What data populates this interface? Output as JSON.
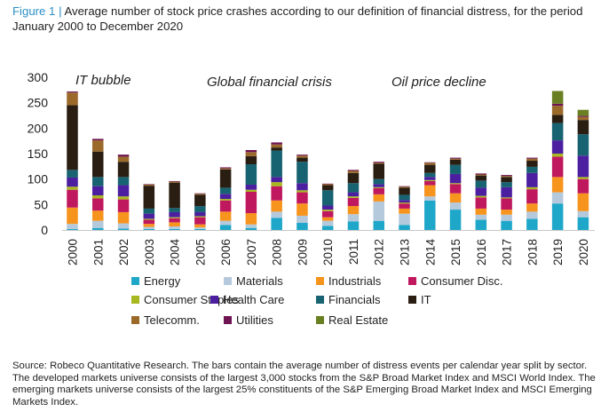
{
  "figure": {
    "label": "Figure 1",
    "separator": "|",
    "caption": "Average number of stock price crashes according to our definition of financial distress, for the period January 2000 to December 2020"
  },
  "source_note": "Source: Robeco Quantitative Research. The bars contain the average number of distress events per calendar year split by sector. The developed markets universe consists of the largest 3,000 stocks from the S&P Broad Market Index and MSCI World Index. The emerging markets universe consists of the largest 25% constituents of the S&P Emerging Broad Market Index and MSCI Emerging Markets Index.",
  "chart_data": {
    "type": "bar",
    "stacked": true,
    "title": "Average number of stock price crashes according to our definition of financial distress, for the period January 2000 to December 2020",
    "xlabel": "",
    "ylabel": "",
    "ylim": [
      0,
      300
    ],
    "yticks": [
      0,
      50,
      100,
      150,
      200,
      250,
      300
    ],
    "grid": false,
    "legend_position": "bottom",
    "categories": [
      "2000",
      "2001",
      "2002",
      "2003",
      "2004",
      "2005",
      "2006",
      "2007",
      "2008",
      "2009",
      "2010",
      "2011",
      "2012",
      "2013",
      "2014",
      "2015",
      "2016",
      "2017",
      "2018",
      "2019",
      "2020"
    ],
    "annotations": [
      {
        "text": "IT bubble",
        "at_category": "2000"
      },
      {
        "text": "Global financial crisis",
        "at_category": "2007"
      },
      {
        "text": "Oil price decline",
        "at_category": "2014"
      }
    ],
    "series": [
      {
        "name": "Energy",
        "color": "#1fa7c9",
        "values": [
          2,
          4,
          3,
          2,
          2,
          2,
          10,
          4,
          24,
          14,
          8,
          17,
          18,
          10,
          58,
          40,
          20,
          18,
          22,
          52,
          25
        ]
      },
      {
        "name": "Materials",
        "color": "#b5c9dc",
        "values": [
          10,
          14,
          10,
          4,
          5,
          3,
          8,
          7,
          12,
          14,
          10,
          14,
          38,
          22,
          8,
          14,
          10,
          12,
          14,
          22,
          12
        ]
      },
      {
        "name": "Industrials",
        "color": "#f7941d",
        "values": [
          32,
          20,
          22,
          6,
          8,
          6,
          18,
          22,
          22,
          24,
          7,
          16,
          14,
          10,
          22,
          18,
          12,
          10,
          16,
          30,
          35
        ]
      },
      {
        "name": "Consumer Disc.",
        "color": "#c0185f",
        "values": [
          35,
          24,
          25,
          8,
          8,
          14,
          22,
          42,
          28,
          22,
          12,
          16,
          12,
          10,
          8,
          18,
          22,
          22,
          28,
          40,
          28
        ]
      },
      {
        "name": "Consumer Staples",
        "color": "#a8b820",
        "values": [
          6,
          6,
          6,
          2,
          2,
          2,
          3,
          4,
          8,
          4,
          3,
          3,
          2,
          2,
          2,
          2,
          3,
          2,
          4,
          6,
          4
        ]
      },
      {
        "name": "Health Care",
        "color": "#4b1fa0",
        "values": [
          18,
          18,
          22,
          10,
          10,
          8,
          10,
          10,
          10,
          14,
          8,
          8,
          6,
          5,
          6,
          18,
          16,
          20,
          28,
          26,
          42
        ]
      },
      {
        "name": "Financials",
        "color": "#176371",
        "values": [
          15,
          18,
          16,
          10,
          8,
          12,
          12,
          40,
          52,
          42,
          30,
          18,
          10,
          10,
          8,
          18,
          14,
          10,
          12,
          34,
          42
        ]
      },
      {
        "name": "IT",
        "color": "#2a1e12",
        "values": [
          127,
          50,
          30,
          45,
          50,
          22,
          36,
          16,
          6,
          8,
          10,
          20,
          30,
          14,
          16,
          10,
          10,
          10,
          12,
          16,
          28
        ]
      },
      {
        "name": "Telecomm.",
        "color": "#9b6a2b",
        "values": [
          25,
          22,
          10,
          2,
          2,
          2,
          2,
          8,
          6,
          4,
          2,
          4,
          2,
          2,
          4,
          2,
          2,
          2,
          4,
          18,
          6
        ]
      },
      {
        "name": "Utilities",
        "color": "#6e1452",
        "values": [
          2,
          3,
          4,
          1,
          1,
          1,
          2,
          4,
          4,
          2,
          1,
          2,
          2,
          1,
          1,
          2,
          2,
          2,
          2,
          4,
          2
        ]
      },
      {
        "name": "Real Estate",
        "color": "#6a7f22",
        "values": [
          0,
          0,
          0,
          0,
          0,
          0,
          0,
          0,
          0,
          0,
          0,
          0,
          0,
          0,
          0,
          0,
          0,
          0,
          0,
          25,
          12
        ]
      }
    ]
  }
}
